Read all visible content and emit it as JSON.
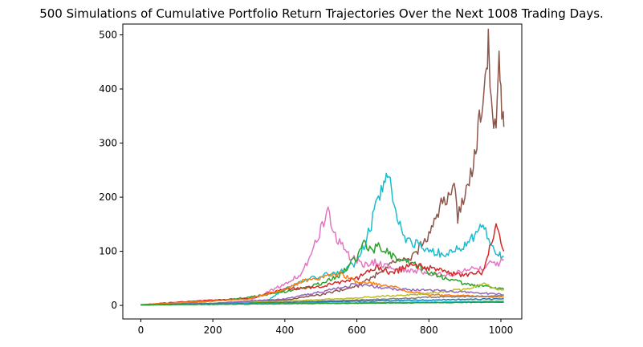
{
  "chart_data": {
    "type": "line",
    "title": "500 Simulations of Cumulative Portfolio Return Trajectories Over the Next 1008 Trading Days.",
    "xlabel": "",
    "ylabel": "",
    "xlim": [
      -50,
      1058
    ],
    "ylim": [
      -25,
      520
    ],
    "xticks": [
      0,
      200,
      400,
      600,
      800,
      1000
    ],
    "yticks": [
      0,
      100,
      200,
      300,
      400,
      500
    ],
    "grid": false,
    "legend": "none",
    "series": [
      {
        "color": "#8c564b",
        "points": [
          [
            0,
            1
          ],
          [
            100,
            2
          ],
          [
            200,
            4
          ],
          [
            300,
            6
          ],
          [
            400,
            10
          ],
          [
            500,
            20
          ],
          [
            600,
            35
          ],
          [
            650,
            55
          ],
          [
            700,
            80
          ],
          [
            750,
            85
          ],
          [
            800,
            130
          ],
          [
            830,
            180
          ],
          [
            850,
            200
          ],
          [
            870,
            230
          ],
          [
            880,
            160
          ],
          [
            900,
            210
          ],
          [
            920,
            250
          ],
          [
            930,
            280
          ],
          [
            940,
            350
          ],
          [
            950,
            360
          ],
          [
            960,
            440
          ],
          [
            965,
            480
          ],
          [
            970,
            380
          ],
          [
            980,
            320
          ],
          [
            990,
            360
          ],
          [
            995,
            490
          ],
          [
            1000,
            400
          ],
          [
            1005,
            340
          ],
          [
            1008,
            330
          ]
        ]
      },
      {
        "color": "#17becf",
        "points": [
          [
            0,
            1
          ],
          [
            150,
            2
          ],
          [
            250,
            4
          ],
          [
            350,
            8
          ],
          [
            400,
            30
          ],
          [
            450,
            45
          ],
          [
            500,
            55
          ],
          [
            550,
            60
          ],
          [
            600,
            80
          ],
          [
            620,
            110
          ],
          [
            640,
            150
          ],
          [
            660,
            200
          ],
          [
            675,
            230
          ],
          [
            685,
            255
          ],
          [
            700,
            190
          ],
          [
            720,
            150
          ],
          [
            740,
            120
          ],
          [
            760,
            115
          ],
          [
            800,
            100
          ],
          [
            850,
            95
          ],
          [
            900,
            110
          ],
          [
            950,
            150
          ],
          [
            970,
            110
          ],
          [
            990,
            95
          ],
          [
            1008,
            90
          ]
        ]
      },
      {
        "color": "#e377c2",
        "points": [
          [
            0,
            1
          ],
          [
            100,
            2
          ],
          [
            200,
            3
          ],
          [
            300,
            8
          ],
          [
            400,
            40
          ],
          [
            450,
            60
          ],
          [
            480,
            110
          ],
          [
            500,
            140
          ],
          [
            520,
            170
          ],
          [
            540,
            130
          ],
          [
            560,
            110
          ],
          [
            580,
            90
          ],
          [
            600,
            85
          ],
          [
            620,
            75
          ],
          [
            650,
            80
          ],
          [
            700,
            70
          ],
          [
            750,
            65
          ],
          [
            800,
            60
          ],
          [
            850,
            55
          ],
          [
            900,
            65
          ],
          [
            950,
            70
          ],
          [
            970,
            80
          ],
          [
            990,
            75
          ],
          [
            1008,
            85
          ]
        ]
      },
      {
        "color": "#2ca02c",
        "points": [
          [
            0,
            1
          ],
          [
            100,
            3
          ],
          [
            200,
            8
          ],
          [
            300,
            15
          ],
          [
            400,
            25
          ],
          [
            500,
            40
          ],
          [
            550,
            55
          ],
          [
            600,
            90
          ],
          [
            620,
            115
          ],
          [
            640,
            100
          ],
          [
            660,
            110
          ],
          [
            700,
            90
          ],
          [
            750,
            80
          ],
          [
            800,
            60
          ],
          [
            850,
            50
          ],
          [
            900,
            40
          ],
          [
            950,
            35
          ],
          [
            1008,
            30
          ]
        ]
      },
      {
        "color": "#d62728",
        "points": [
          [
            0,
            1
          ],
          [
            100,
            6
          ],
          [
            200,
            10
          ],
          [
            300,
            12
          ],
          [
            400,
            30
          ],
          [
            500,
            35
          ],
          [
            600,
            50
          ],
          [
            650,
            70
          ],
          [
            700,
            60
          ],
          [
            750,
            75
          ],
          [
            800,
            70
          ],
          [
            850,
            60
          ],
          [
            900,
            55
          ],
          [
            950,
            60
          ],
          [
            980,
            130
          ],
          [
            990,
            150
          ],
          [
            1000,
            110
          ],
          [
            1008,
            100
          ]
        ]
      },
      {
        "color": "#ff7f0e",
        "points": [
          [
            0,
            1
          ],
          [
            100,
            5
          ],
          [
            200,
            8
          ],
          [
            300,
            12
          ],
          [
            400,
            30
          ],
          [
            450,
            45
          ],
          [
            500,
            50
          ],
          [
            550,
            60
          ],
          [
            600,
            45
          ],
          [
            650,
            40
          ],
          [
            700,
            35
          ],
          [
            750,
            25
          ],
          [
            800,
            20
          ],
          [
            900,
            18
          ],
          [
            1008,
            15
          ]
        ]
      },
      {
        "color": "#bcbd22",
        "points": [
          [
            0,
            1
          ],
          [
            200,
            3
          ],
          [
            400,
            8
          ],
          [
            600,
            14
          ],
          [
            800,
            22
          ],
          [
            900,
            30
          ],
          [
            950,
            40
          ],
          [
            970,
            35
          ],
          [
            1008,
            28
          ]
        ]
      },
      {
        "color": "#9467bd",
        "points": [
          [
            0,
            1
          ],
          [
            200,
            4
          ],
          [
            400,
            12
          ],
          [
            500,
            25
          ],
          [
            600,
            40
          ],
          [
            700,
            30
          ],
          [
            800,
            28
          ],
          [
            900,
            25
          ],
          [
            1008,
            20
          ]
        ]
      },
      {
        "color": "#7f7f7f",
        "points": [
          [
            0,
            1
          ],
          [
            200,
            3
          ],
          [
            400,
            6
          ],
          [
            600,
            10
          ],
          [
            800,
            15
          ],
          [
            1008,
            18
          ]
        ]
      },
      {
        "color": "#1f77b4",
        "points": [
          [
            0,
            1
          ],
          [
            200,
            3
          ],
          [
            400,
            5
          ],
          [
            600,
            8
          ],
          [
            800,
            10
          ],
          [
            1008,
            12
          ]
        ]
      },
      {
        "color": "#17becf",
        "points": [
          [
            0,
            1
          ],
          [
            200,
            2
          ],
          [
            400,
            4
          ],
          [
            600,
            5
          ],
          [
            800,
            6
          ],
          [
            1008,
            8
          ]
        ]
      },
      {
        "color": "#2ca02c",
        "points": [
          [
            0,
            1
          ],
          [
            200,
            2
          ],
          [
            400,
            3
          ],
          [
            600,
            4
          ],
          [
            800,
            5
          ],
          [
            1008,
            6
          ]
        ]
      }
    ]
  }
}
